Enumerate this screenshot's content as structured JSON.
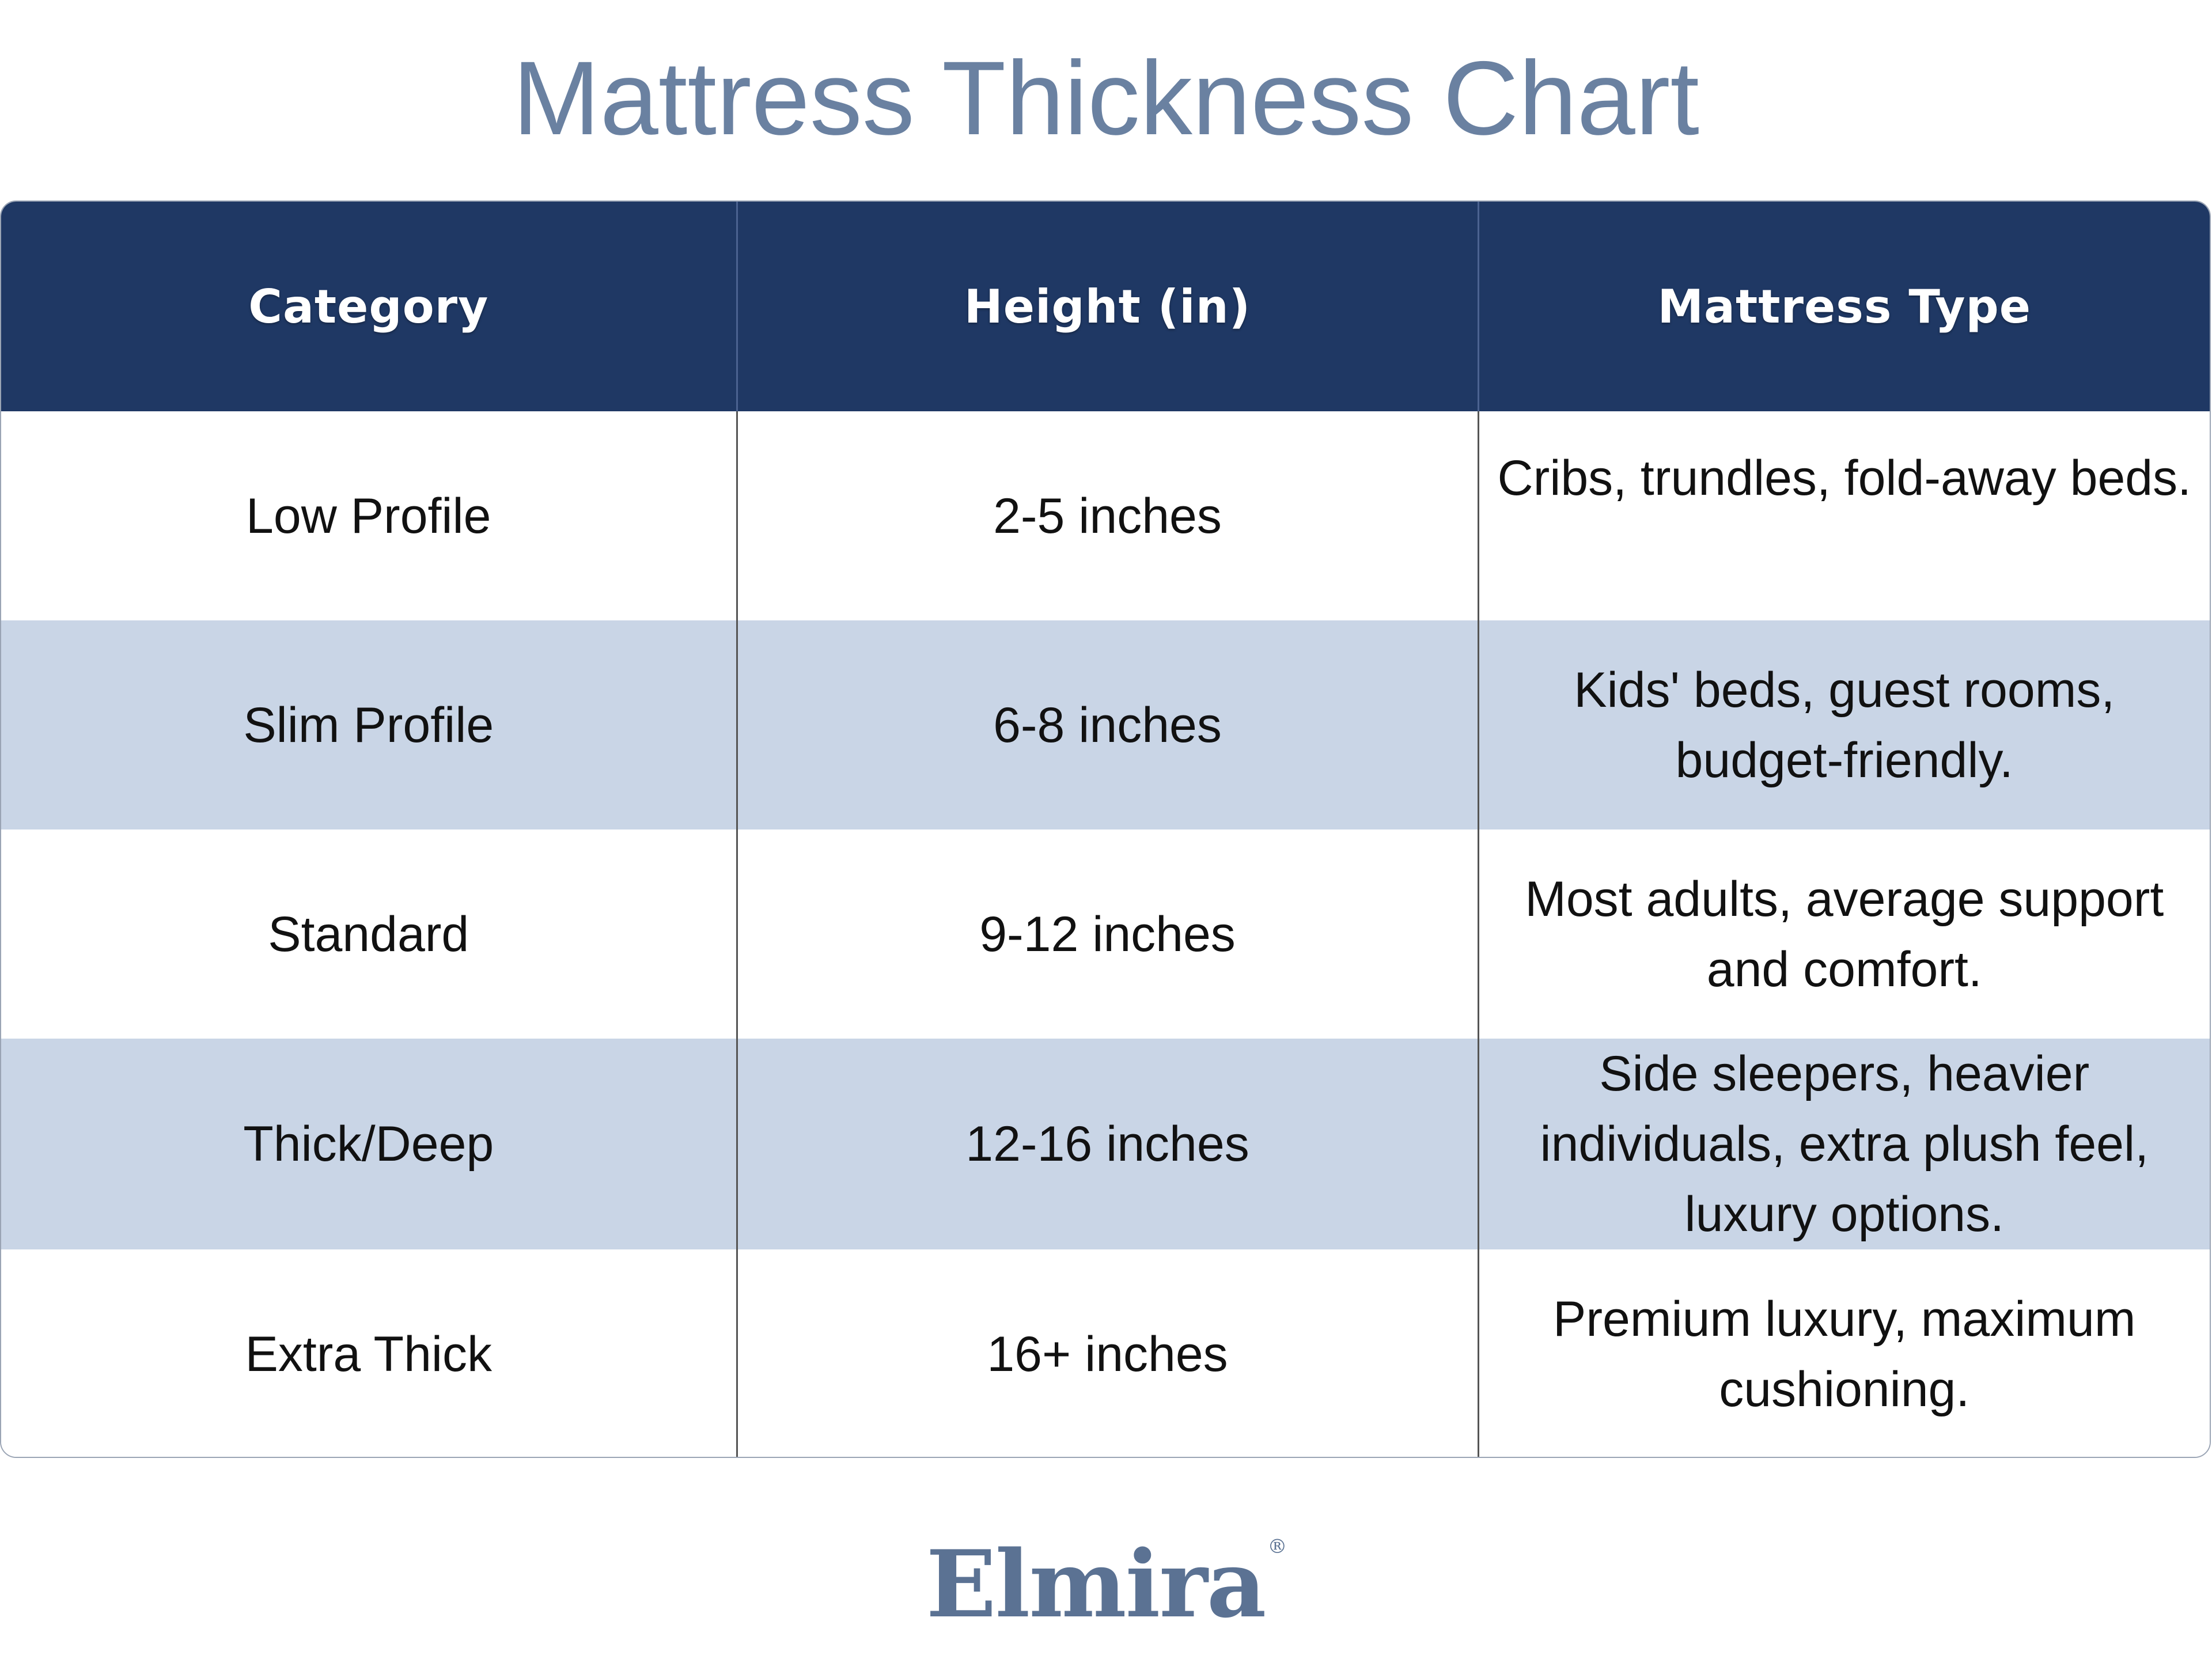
{
  "title": "Mattress Thickness Chart",
  "colors": {
    "title": "#6a81a1",
    "header_bg": "#1f3864",
    "header_text": "#ffffff",
    "row_alt_bg": "#c9d5e6",
    "row_bg": "#ffffff",
    "logo": "#5b7293"
  },
  "table": {
    "headers": [
      "Category",
      "Height (in)",
      "Mattress Type"
    ],
    "rows": [
      {
        "category": "Low Profile",
        "height": "2-5 inches",
        "type": "Cribs, trundles, fold-away beds."
      },
      {
        "category": "Slim Profile",
        "height": "6-8 inches",
        "type": "Kids' beds, guest rooms, budget-friendly."
      },
      {
        "category": "Standard",
        "height": "9-12 inches",
        "type": "Most adults, average support and comfort."
      },
      {
        "category": "Thick/Deep",
        "height": "12-16 inches",
        "type": "Side sleepers, heavier individuals, extra plush feel, luxury options."
      },
      {
        "category": "Extra Thick",
        "height": "16+ inches",
        "type": "Premium luxury, maximum cushioning."
      }
    ]
  },
  "brand": {
    "name": "Elmira",
    "registered_mark": "®"
  }
}
